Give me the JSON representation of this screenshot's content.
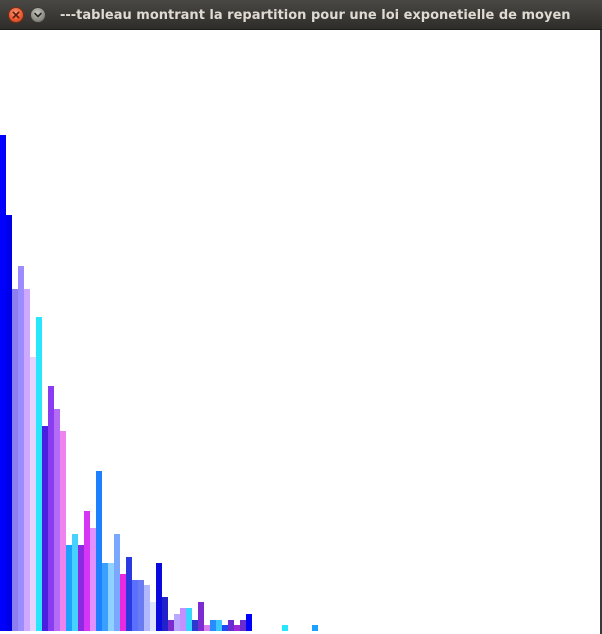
{
  "window": {
    "title": "---tableau montrant la repartition pour une loi exponetielle de moyen",
    "close_icon": "close-icon",
    "minimize_icon": "chevron-down-icon"
  },
  "chart_data": {
    "type": "bar",
    "title": "",
    "xlabel": "",
    "ylabel": "",
    "ylim": [
      0,
      100
    ],
    "values": [
      87,
      73,
      60,
      64,
      60,
      48,
      55,
      36,
      43,
      39,
      35,
      15,
      17,
      15,
      21,
      18,
      28,
      12,
      12,
      17,
      10,
      13,
      9,
      9,
      8,
      5,
      12,
      6,
      2,
      3,
      4,
      4,
      2,
      5,
      1,
      2,
      2,
      1,
      2,
      1,
      2,
      3,
      0,
      0,
      0,
      0,
      0,
      1,
      0,
      0,
      0,
      0,
      1,
      0,
      0,
      0,
      0,
      0,
      0,
      0,
      0,
      0,
      0,
      0,
      0,
      0,
      0,
      0,
      0,
      0
    ],
    "colors": [
      "#0000ff",
      "#0000e8",
      "#8d7ff0",
      "#9b8cff",
      "#cfa8ff",
      "#e6d2ff",
      "#29e6ff",
      "#4a1fe0",
      "#8a3cf0",
      "#b46cf6",
      "#ee82ee",
      "#1ea0ff",
      "#46d2ff",
      "#8a2be2",
      "#d735f6",
      "#e090ff",
      "#1e7fff",
      "#3aa0ff",
      "#90d2ff",
      "#7aa8ff",
      "#e92be0",
      "#2a3ae0",
      "#5a70ff",
      "#6a7af0",
      "#b0b8ff",
      "#dce4ff",
      "#0a0adc",
      "#2222cc",
      "#7b2bd0",
      "#b8a8ff",
      "#c490ff",
      "#38d6ff",
      "#2a3ad0",
      "#7b2bd0",
      "#d680f0",
      "#2a8aff",
      "#3ac6ff",
      "#1e48f0",
      "#6a2bd0",
      "#9b2bd8",
      "#6a2bd0"
    ]
  }
}
